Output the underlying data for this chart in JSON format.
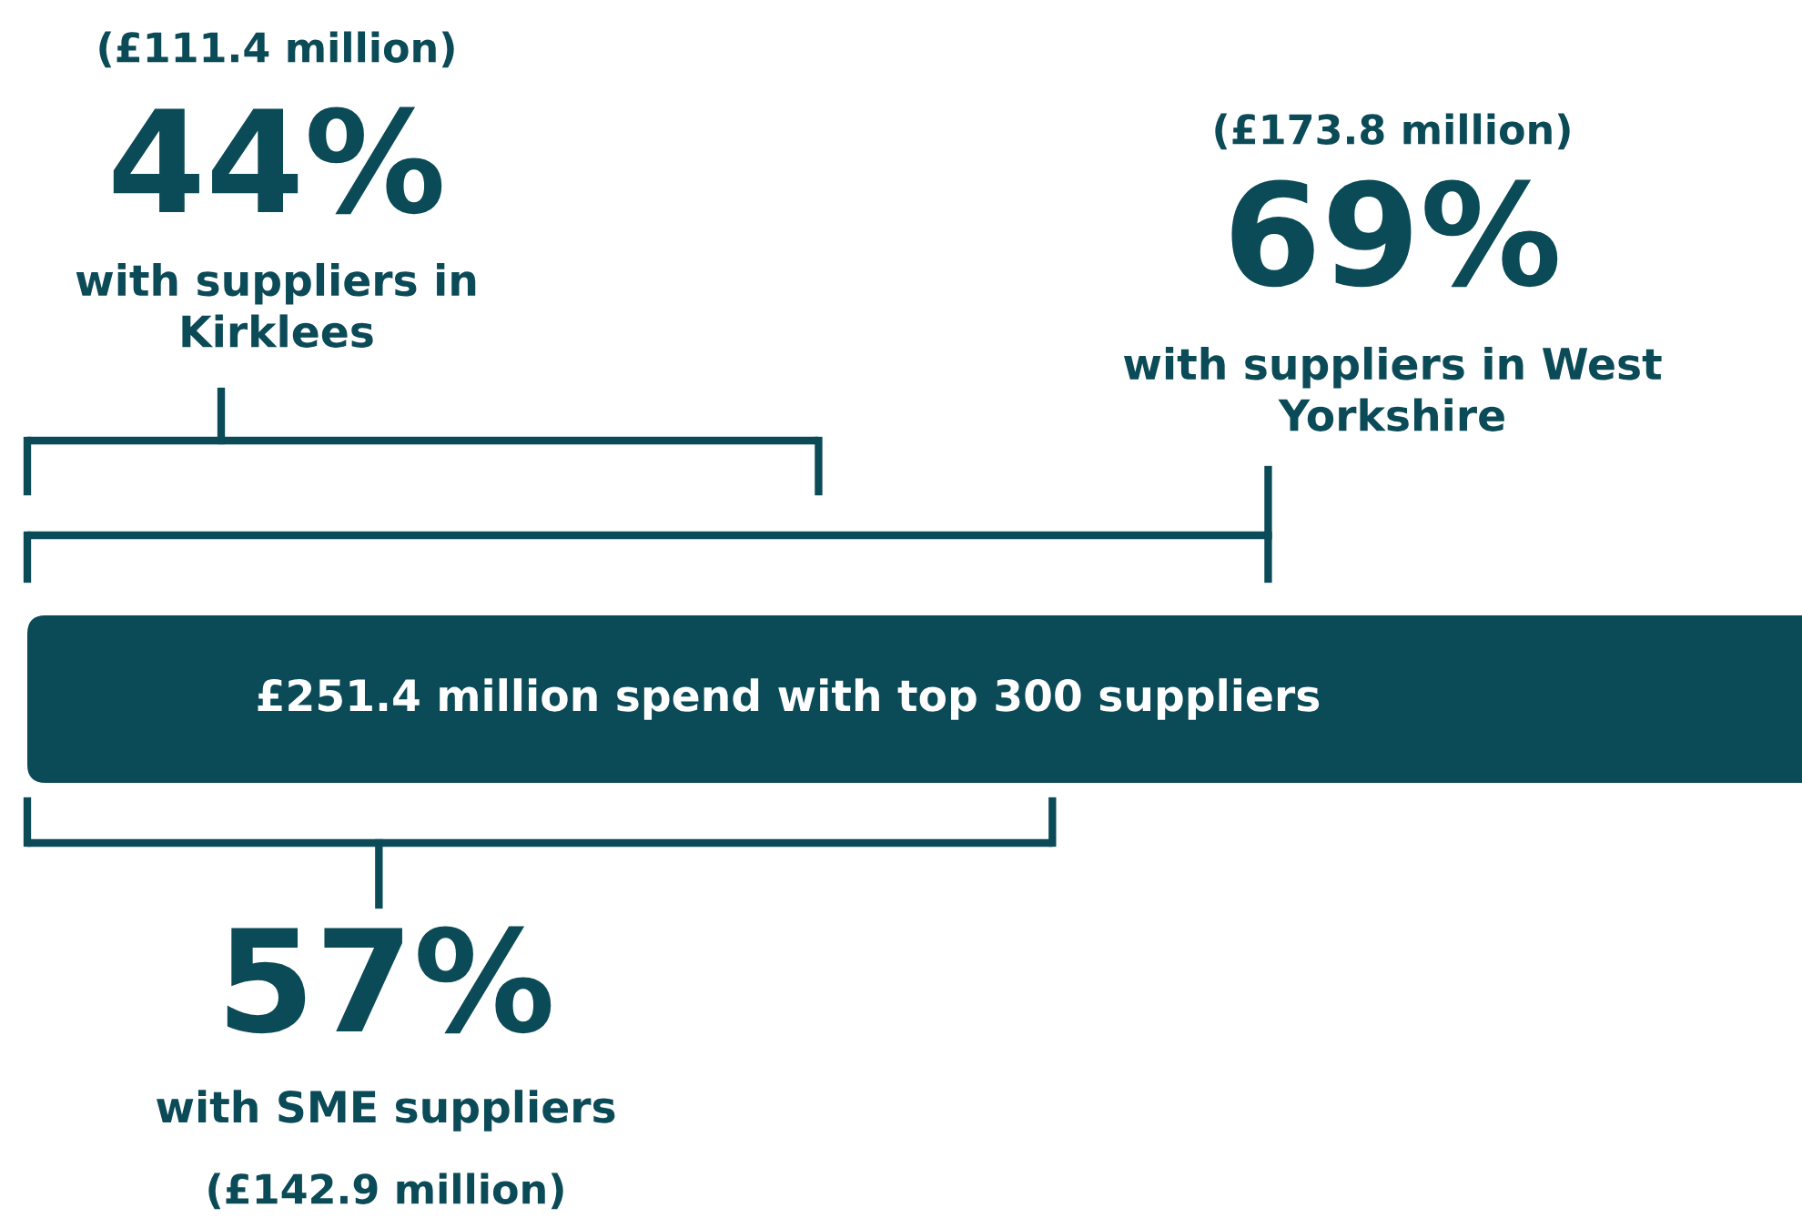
{
  "chart_data": {
    "type": "other",
    "title": "£251.4 million spend with top 300 suppliers",
    "color": "#0b4a57",
    "categories": [
      "with suppliers in\nKirklees",
      "with suppliers in West\nYorkshire",
      "with SME suppliers"
    ],
    "values": [
      44,
      69,
      57
    ],
    "value_labels": [
      "44%",
      "69%",
      "57%"
    ],
    "annotations": [
      "(£111.4 million)",
      "(£173.8 million)",
      "(£142.9 million)"
    ]
  }
}
